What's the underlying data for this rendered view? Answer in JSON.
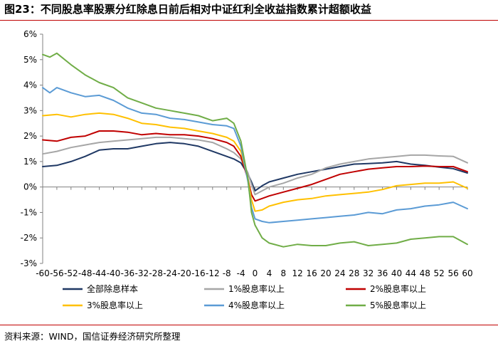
{
  "figure": {
    "title": "图23：不同股息率股票分红除息日前后相对中证红利全收益指数累计超额收益",
    "source": "资料来源：WIND，国信证券经济研究所整理"
  },
  "chart_data": {
    "type": "line",
    "title": "图23：不同股息率股票分红除息日前后相对中证红利全收益指数累计超额收益",
    "xlabel": "",
    "ylabel": "",
    "xlim": [
      -60,
      60
    ],
    "ylim": [
      -3,
      6
    ],
    "x_ticks": [
      -60,
      -56,
      -52,
      -48,
      -44,
      -40,
      -36,
      -32,
      -28,
      -24,
      -20,
      -16,
      -12,
      -8,
      -4,
      0,
      4,
      8,
      12,
      16,
      20,
      24,
      28,
      32,
      36,
      40,
      44,
      48,
      52,
      56,
      60
    ],
    "y_ticks": [
      -3,
      -2,
      -1,
      0,
      1,
      2,
      3,
      4,
      5,
      6
    ],
    "y_tick_labels": [
      "-3%",
      "-2%",
      "-1%",
      "0%",
      "1%",
      "2%",
      "3%",
      "4%",
      "5%",
      "6%"
    ],
    "grid": false,
    "legend_position": "bottom",
    "series": [
      {
        "name": "全部除息样本",
        "color": "#1f3864",
        "points": [
          [
            -60,
            0.8
          ],
          [
            -56,
            0.85
          ],
          [
            -52,
            1.0
          ],
          [
            -48,
            1.2
          ],
          [
            -44,
            1.45
          ],
          [
            -40,
            1.5
          ],
          [
            -36,
            1.5
          ],
          [
            -32,
            1.6
          ],
          [
            -28,
            1.7
          ],
          [
            -24,
            1.75
          ],
          [
            -20,
            1.7
          ],
          [
            -16,
            1.6
          ],
          [
            -12,
            1.4
          ],
          [
            -8,
            1.2
          ],
          [
            -6,
            1.1
          ],
          [
            -4,
            0.95
          ],
          [
            -2,
            0.5
          ],
          [
            -1,
            0.2
          ],
          [
            0,
            -0.15
          ],
          [
            2,
            0.05
          ],
          [
            4,
            0.2
          ],
          [
            8,
            0.35
          ],
          [
            12,
            0.5
          ],
          [
            16,
            0.6
          ],
          [
            20,
            0.7
          ],
          [
            24,
            0.8
          ],
          [
            28,
            0.9
          ],
          [
            32,
            0.92
          ],
          [
            36,
            0.95
          ],
          [
            40,
            1.0
          ],
          [
            44,
            0.9
          ],
          [
            48,
            0.85
          ],
          [
            52,
            0.78
          ],
          [
            56,
            0.72
          ],
          [
            60,
            0.55
          ]
        ]
      },
      {
        "name": "1%股息率以上",
        "color": "#a6a6a6",
        "points": [
          [
            -60,
            1.3
          ],
          [
            -56,
            1.4
          ],
          [
            -52,
            1.55
          ],
          [
            -48,
            1.65
          ],
          [
            -44,
            1.75
          ],
          [
            -40,
            1.8
          ],
          [
            -36,
            1.85
          ],
          [
            -32,
            1.9
          ],
          [
            -28,
            1.95
          ],
          [
            -24,
            1.95
          ],
          [
            -20,
            1.9
          ],
          [
            -16,
            1.85
          ],
          [
            -12,
            1.75
          ],
          [
            -8,
            1.5
          ],
          [
            -6,
            1.35
          ],
          [
            -4,
            1.1
          ],
          [
            -2,
            0.55
          ],
          [
            -1,
            0.1
          ],
          [
            0,
            -0.3
          ],
          [
            2,
            -0.15
          ],
          [
            4,
            0.0
          ],
          [
            8,
            0.15
          ],
          [
            12,
            0.35
          ],
          [
            16,
            0.5
          ],
          [
            20,
            0.75
          ],
          [
            24,
            0.9
          ],
          [
            28,
            1.0
          ],
          [
            32,
            1.1
          ],
          [
            36,
            1.15
          ],
          [
            40,
            1.2
          ],
          [
            44,
            1.25
          ],
          [
            48,
            1.25
          ],
          [
            52,
            1.22
          ],
          [
            56,
            1.2
          ],
          [
            60,
            0.95
          ]
        ]
      },
      {
        "name": "2%股息率以上",
        "color": "#c00000",
        "points": [
          [
            -60,
            1.85
          ],
          [
            -56,
            1.8
          ],
          [
            -52,
            1.95
          ],
          [
            -48,
            2.0
          ],
          [
            -44,
            2.2
          ],
          [
            -40,
            2.2
          ],
          [
            -36,
            2.15
          ],
          [
            -32,
            2.05
          ],
          [
            -28,
            2.1
          ],
          [
            -24,
            2.05
          ],
          [
            -20,
            2.05
          ],
          [
            -16,
            2.0
          ],
          [
            -12,
            1.9
          ],
          [
            -8,
            1.75
          ],
          [
            -6,
            1.6
          ],
          [
            -4,
            1.2
          ],
          [
            -2,
            0.3
          ],
          [
            -1,
            -0.3
          ],
          [
            0,
            -0.55
          ],
          [
            2,
            -0.45
          ],
          [
            4,
            -0.35
          ],
          [
            8,
            -0.2
          ],
          [
            12,
            -0.05
          ],
          [
            16,
            0.1
          ],
          [
            20,
            0.3
          ],
          [
            24,
            0.5
          ],
          [
            28,
            0.6
          ],
          [
            32,
            0.7
          ],
          [
            36,
            0.75
          ],
          [
            40,
            0.8
          ],
          [
            44,
            0.8
          ],
          [
            48,
            0.82
          ],
          [
            52,
            0.8
          ],
          [
            56,
            0.8
          ],
          [
            60,
            0.6
          ]
        ]
      },
      {
        "name": "3%股息率以上",
        "color": "#ffc000",
        "points": [
          [
            -60,
            2.8
          ],
          [
            -56,
            2.85
          ],
          [
            -52,
            2.75
          ],
          [
            -48,
            2.85
          ],
          [
            -44,
            2.9
          ],
          [
            -40,
            2.85
          ],
          [
            -36,
            2.7
          ],
          [
            -32,
            2.5
          ],
          [
            -28,
            2.45
          ],
          [
            -24,
            2.35
          ],
          [
            -20,
            2.3
          ],
          [
            -16,
            2.2
          ],
          [
            -12,
            2.1
          ],
          [
            -8,
            1.95
          ],
          [
            -6,
            1.8
          ],
          [
            -4,
            1.4
          ],
          [
            -2,
            0.3
          ],
          [
            -1,
            -0.5
          ],
          [
            0,
            -0.95
          ],
          [
            2,
            -0.9
          ],
          [
            4,
            -0.75
          ],
          [
            8,
            -0.6
          ],
          [
            12,
            -0.5
          ],
          [
            16,
            -0.45
          ],
          [
            20,
            -0.35
          ],
          [
            24,
            -0.3
          ],
          [
            28,
            -0.25
          ],
          [
            32,
            -0.2
          ],
          [
            36,
            -0.1
          ],
          [
            40,
            0.05
          ],
          [
            44,
            0.1
          ],
          [
            48,
            0.15
          ],
          [
            52,
            0.15
          ],
          [
            56,
            0.2
          ],
          [
            60,
            -0.05
          ]
        ]
      },
      {
        "name": "4%股息率以上",
        "color": "#5b9bd5",
        "points": [
          [
            -60,
            3.9
          ],
          [
            -58,
            3.7
          ],
          [
            -56,
            3.9
          ],
          [
            -52,
            3.7
          ],
          [
            -48,
            3.55
          ],
          [
            -44,
            3.6
          ],
          [
            -40,
            3.4
          ],
          [
            -36,
            3.1
          ],
          [
            -32,
            2.9
          ],
          [
            -28,
            2.85
          ],
          [
            -24,
            2.7
          ],
          [
            -20,
            2.65
          ],
          [
            -16,
            2.55
          ],
          [
            -12,
            2.45
          ],
          [
            -8,
            2.4
          ],
          [
            -6,
            2.3
          ],
          [
            -4,
            1.6
          ],
          [
            -2,
            0.2
          ],
          [
            -1,
            -0.8
          ],
          [
            0,
            -1.25
          ],
          [
            2,
            -1.35
          ],
          [
            4,
            -1.4
          ],
          [
            8,
            -1.35
          ],
          [
            12,
            -1.3
          ],
          [
            16,
            -1.25
          ],
          [
            20,
            -1.2
          ],
          [
            24,
            -1.15
          ],
          [
            28,
            -1.1
          ],
          [
            32,
            -1.0
          ],
          [
            36,
            -1.05
          ],
          [
            40,
            -0.9
          ],
          [
            44,
            -0.85
          ],
          [
            48,
            -0.75
          ],
          [
            52,
            -0.7
          ],
          [
            56,
            -0.6
          ],
          [
            60,
            -0.85
          ]
        ]
      },
      {
        "name": "5%股息率以上",
        "color": "#70ad47",
        "points": [
          [
            -60,
            5.2
          ],
          [
            -58,
            5.1
          ],
          [
            -56,
            5.25
          ],
          [
            -52,
            4.8
          ],
          [
            -48,
            4.4
          ],
          [
            -44,
            4.1
          ],
          [
            -40,
            3.9
          ],
          [
            -36,
            3.5
          ],
          [
            -32,
            3.3
          ],
          [
            -28,
            3.1
          ],
          [
            -24,
            3.0
          ],
          [
            -20,
            2.9
          ],
          [
            -16,
            2.8
          ],
          [
            -12,
            2.6
          ],
          [
            -8,
            2.7
          ],
          [
            -6,
            2.5
          ],
          [
            -4,
            1.8
          ],
          [
            -2,
            0.3
          ],
          [
            -1,
            -1.0
          ],
          [
            0,
            -1.5
          ],
          [
            2,
            -2.0
          ],
          [
            4,
            -2.2
          ],
          [
            8,
            -2.35
          ],
          [
            12,
            -2.25
          ],
          [
            16,
            -2.3
          ],
          [
            20,
            -2.3
          ],
          [
            24,
            -2.2
          ],
          [
            28,
            -2.15
          ],
          [
            32,
            -2.3
          ],
          [
            36,
            -2.25
          ],
          [
            40,
            -2.2
          ],
          [
            44,
            -2.05
          ],
          [
            48,
            -2.0
          ],
          [
            52,
            -1.95
          ],
          [
            56,
            -1.95
          ],
          [
            60,
            -2.25
          ]
        ]
      }
    ]
  }
}
